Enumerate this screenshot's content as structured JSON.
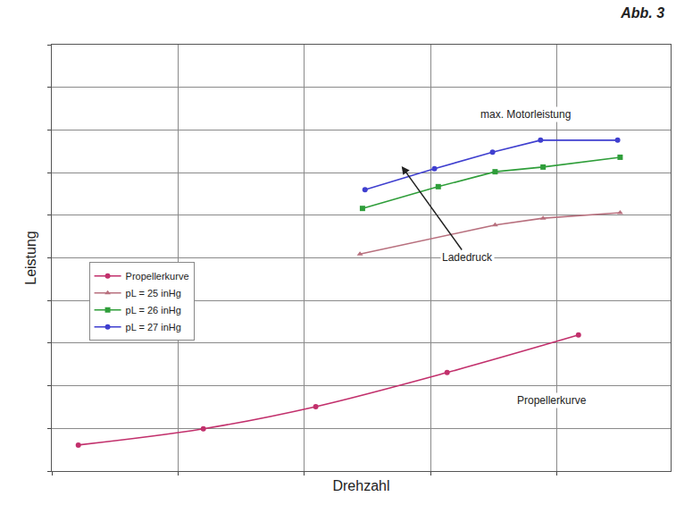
{
  "chart_data": {
    "type": "line",
    "title": "Abb. 3",
    "x_label": "Drehzahl",
    "y_label": "Leistung",
    "xlim": [
      0,
      4.9
    ],
    "xticks": [
      0,
      1,
      2,
      3,
      4
    ],
    "ylim": [
      0,
      10
    ],
    "yticks": [
      0,
      1,
      2,
      3,
      4,
      5,
      6,
      7,
      8,
      9,
      10
    ],
    "grid": true,
    "tick_labels": false,
    "legend": "left",
    "series": [
      {
        "name": "Propellerkurve",
        "color": "#c2306c",
        "marker": "circle",
        "line_style": "spline",
        "x": [
          0.21,
          1.2,
          2.09,
          3.13,
          4.17
        ],
        "values": [
          0.61,
          0.99,
          1.51,
          2.31,
          3.19
        ]
      },
      {
        "name": "pL = 25 inHg",
        "color": "#b8707e",
        "marker": "triangle-up",
        "line_style": "solid",
        "x": [
          2.44,
          3.51,
          3.89,
          4.5
        ],
        "values": [
          5.09,
          5.77,
          5.93,
          6.06
        ]
      },
      {
        "name": "pL = 26 inHg",
        "color": "#2f9e3a",
        "marker": "square",
        "line_style": "solid",
        "x": [
          2.46,
          3.06,
          3.51,
          3.89,
          4.5
        ],
        "values": [
          6.16,
          6.67,
          7.02,
          7.13,
          7.36
        ]
      },
      {
        "name": "pL = 27 inHg",
        "color": "#3f3fcf",
        "marker": "circle",
        "line_style": "solid",
        "x": [
          2.48,
          3.03,
          3.49,
          3.87,
          4.48
        ],
        "values": [
          6.6,
          7.09,
          7.48,
          7.76,
          7.76
        ]
      }
    ],
    "annotations": [
      "max. Motorleistung",
      "Ladedruck",
      "Propellerkurve"
    ]
  }
}
